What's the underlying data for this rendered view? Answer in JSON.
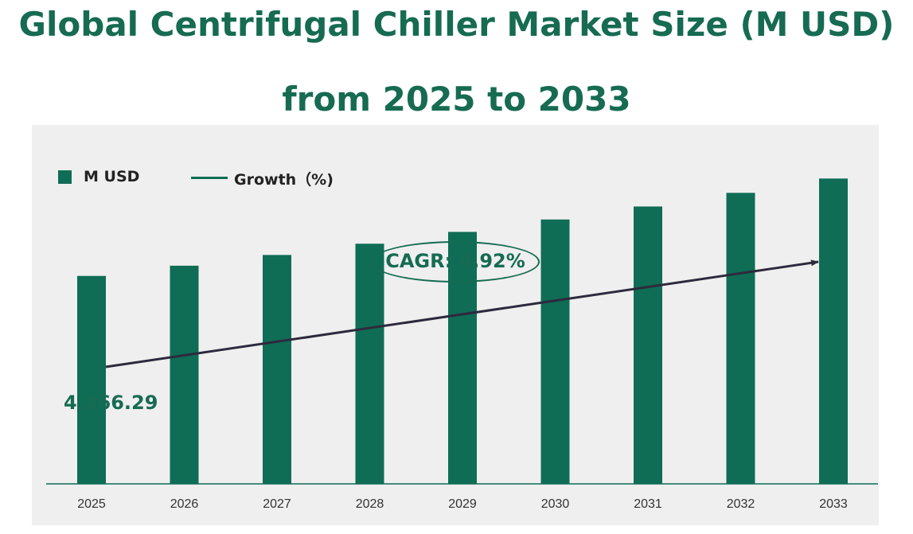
{
  "title_line1": "Global Centrifugal Chiller Market Size (M USD)",
  "title_line2": "from 2025 to 2033",
  "legend": {
    "bar": "M USD",
    "line": "Growth（%)"
  },
  "cagr_label": "CAGR:  4.92%",
  "first_value_label": "4,866.29",
  "colors": {
    "bar": "#0f6d55",
    "title": "#166b52",
    "panel": "#efefef",
    "arrow": "#2e2a3d"
  },
  "chart_data": {
    "type": "bar",
    "categories": [
      "2025",
      "2026",
      "2027",
      "2028",
      "2029",
      "2030",
      "2031",
      "2032",
      "2033"
    ],
    "series": [
      {
        "name": "M USD",
        "values": [
          4866.29,
          5105.7,
          5356.9,
          5620.46,
          5896.99,
          6187.12,
          6491.53,
          6810.91,
          7146.0
        ]
      }
    ],
    "annotations": [
      "4,866.29",
      "CAGR:  4.92%"
    ],
    "ylim": [
      0,
      8400
    ],
    "grid": false,
    "legend_position": "top-left"
  }
}
